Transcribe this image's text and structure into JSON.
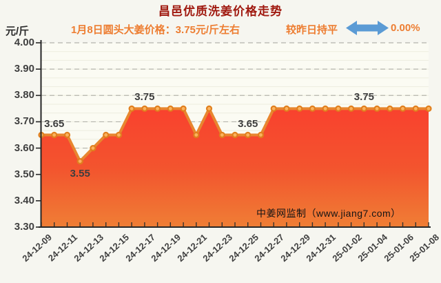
{
  "header": {
    "title": "昌邑优质洗姜价格走势",
    "unit_label": "元/斤",
    "subtitle": "1月8日圆头大姜价格：3.75元/斤左右",
    "comparison_label": "较昨日持平",
    "comparison_value": "0.00%",
    "arrow_icon": "double-headed-horizontal-arrow",
    "colors": {
      "title": "#a01a10",
      "subtitle": "#ed7d31",
      "comparison": "#ed7d31",
      "arrow": "#5b9bd5"
    }
  },
  "watermark": "中姜网监制（www.jiang7.com）",
  "chart_data": {
    "type": "area",
    "title": "昌邑优质洗姜价格走势",
    "ylabel": "元/斤",
    "ylim": [
      3.3,
      4.0
    ],
    "grid": "dashed-horizontal-major",
    "legend": "none",
    "x_tick_labels": [
      "24-12-09",
      "24-12-11",
      "24-12-13",
      "24-12-15",
      "24-12-17",
      "24-12-19",
      "24-12-21",
      "24-12-23",
      "24-12-25",
      "24-12-27",
      "24-12-29",
      "24-12-31",
      "25-01-02",
      "25-01-04",
      "25-01-06",
      "25-01-08"
    ],
    "x_points_per_label": 2,
    "y_ticks": [
      "4.00",
      "3.90",
      "3.80",
      "3.70",
      "3.60",
      "3.50",
      "3.40",
      "3.30"
    ],
    "values": [
      3.65,
      3.65,
      3.65,
      3.55,
      3.6,
      3.65,
      3.65,
      3.75,
      3.75,
      3.75,
      3.75,
      3.75,
      3.65,
      3.75,
      3.65,
      3.65,
      3.65,
      3.65,
      3.75,
      3.75,
      3.75,
      3.75,
      3.75,
      3.75,
      3.75,
      3.75,
      3.75,
      3.75,
      3.75,
      3.75,
      3.75
    ],
    "point_labels": [
      {
        "text": "3.65",
        "index": 1,
        "placement": "above"
      },
      {
        "text": "3.55",
        "index": 3,
        "placement": "below"
      },
      {
        "text": "3.75",
        "index": 8,
        "placement": "above"
      },
      {
        "text": "3.65",
        "index": 16,
        "placement": "above"
      },
      {
        "text": "3.75",
        "index": 25,
        "placement": "above"
      }
    ],
    "line_color": "#e8862f",
    "marker_fill": "#fbb35e",
    "marker_stroke": "#e07f1e",
    "area_gradient": [
      "#f9402e",
      "#f3542e",
      "#ef7e35"
    ],
    "axis_color": "#262626"
  }
}
